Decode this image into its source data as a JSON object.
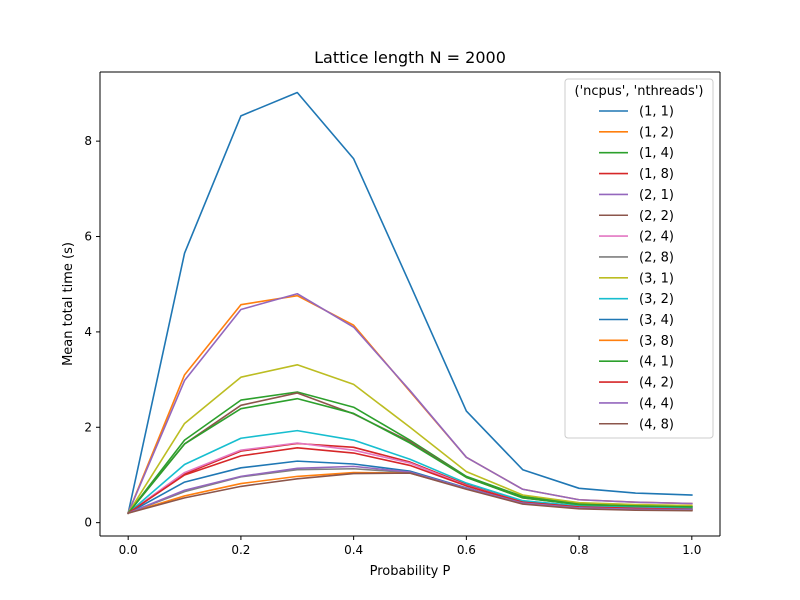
{
  "chart_data": {
    "type": "line",
    "title": "Lattice length N = 2000",
    "xlabel": "Probability P",
    "ylabel": "Mean total time (s)",
    "xlim": [
      -0.05,
      1.05
    ],
    "ylim": [
      -0.28,
      9.45
    ],
    "xticks": [
      0.0,
      0.2,
      0.4,
      0.6,
      0.8,
      1.0
    ],
    "xtick_labels": [
      "0.0",
      "0.2",
      "0.4",
      "0.6",
      "0.8",
      "1.0"
    ],
    "yticks": [
      0,
      2,
      4,
      6,
      8
    ],
    "ytick_labels": [
      "0",
      "2",
      "4",
      "6",
      "8"
    ],
    "grid": false,
    "legend": {
      "title": "('ncpus', 'nthreads')",
      "placement": "top-right"
    },
    "x": [
      0.0,
      0.1,
      0.2,
      0.3,
      0.4,
      0.5,
      0.6,
      0.7,
      0.8,
      0.9,
      1.0
    ],
    "series": [
      {
        "name": "(1, 1)",
        "color": "#1f77b4",
        "values": [
          0.2,
          5.65,
          8.53,
          9.02,
          7.63,
          5.0,
          2.34,
          1.11,
          0.72,
          0.62,
          0.58
        ]
      },
      {
        "name": "(1, 2)",
        "color": "#ff7f0e",
        "values": [
          0.2,
          3.1,
          4.57,
          4.76,
          4.14,
          2.75,
          1.37,
          0.7,
          0.48,
          0.43,
          0.4
        ]
      },
      {
        "name": "(1, 4)",
        "color": "#2ca02c",
        "values": [
          0.2,
          1.73,
          2.57,
          2.74,
          2.42,
          1.73,
          0.97,
          0.55,
          0.4,
          0.36,
          0.34
        ]
      },
      {
        "name": "(1, 8)",
        "color": "#d62728",
        "values": [
          0.2,
          1.02,
          1.5,
          1.66,
          1.58,
          1.27,
          0.8,
          0.44,
          0.34,
          0.31,
          0.3
        ]
      },
      {
        "name": "(2, 1)",
        "color": "#9467bd",
        "values": [
          0.2,
          2.98,
          4.47,
          4.8,
          4.1,
          2.77,
          1.37,
          0.7,
          0.48,
          0.43,
          0.4
        ]
      },
      {
        "name": "(2, 2)",
        "color": "#8c564b",
        "values": [
          0.2,
          1.65,
          2.46,
          2.72,
          2.28,
          1.7,
          0.95,
          0.52,
          0.38,
          0.35,
          0.33
        ]
      },
      {
        "name": "(2, 4)",
        "color": "#e377c2",
        "values": [
          0.2,
          1.05,
          1.52,
          1.67,
          1.52,
          1.25,
          0.78,
          0.43,
          0.33,
          0.3,
          0.29
        ]
      },
      {
        "name": "(2, 8)",
        "color": "#7f7f7f",
        "values": [
          0.2,
          0.65,
          0.96,
          1.11,
          1.13,
          1.05,
          0.72,
          0.41,
          0.31,
          0.28,
          0.27
        ]
      },
      {
        "name": "(3, 1)",
        "color": "#bcbd22",
        "values": [
          0.2,
          2.08,
          3.05,
          3.31,
          2.9,
          2.0,
          1.07,
          0.58,
          0.42,
          0.38,
          0.36
        ]
      },
      {
        "name": "(3, 2)",
        "color": "#17becf",
        "values": [
          0.2,
          1.22,
          1.77,
          1.93,
          1.73,
          1.33,
          0.83,
          0.46,
          0.35,
          0.32,
          0.3
        ]
      },
      {
        "name": "(3, 4)",
        "color": "#1f77b4",
        "values": [
          0.2,
          0.85,
          1.15,
          1.29,
          1.23,
          1.08,
          0.73,
          0.41,
          0.31,
          0.28,
          0.27
        ]
      },
      {
        "name": "(3, 8)",
        "color": "#ff7f0e",
        "values": [
          0.2,
          0.56,
          0.82,
          0.97,
          1.05,
          1.04,
          0.71,
          0.4,
          0.3,
          0.27,
          0.26
        ]
      },
      {
        "name": "(4, 1)",
        "color": "#2ca02c",
        "values": [
          0.2,
          1.65,
          2.39,
          2.6,
          2.29,
          1.67,
          0.95,
          0.52,
          0.38,
          0.35,
          0.33
        ]
      },
      {
        "name": "(4, 2)",
        "color": "#d62728",
        "values": [
          0.2,
          1.0,
          1.4,
          1.57,
          1.46,
          1.2,
          0.77,
          0.43,
          0.33,
          0.3,
          0.28
        ]
      },
      {
        "name": "(4, 4)",
        "color": "#9467bd",
        "values": [
          0.2,
          0.68,
          0.97,
          1.14,
          1.18,
          1.06,
          0.72,
          0.41,
          0.31,
          0.28,
          0.27
        ]
      },
      {
        "name": "(4, 8)",
        "color": "#8c564b",
        "values": [
          0.2,
          0.52,
          0.76,
          0.92,
          1.03,
          1.04,
          0.7,
          0.39,
          0.29,
          0.26,
          0.25
        ]
      }
    ]
  }
}
